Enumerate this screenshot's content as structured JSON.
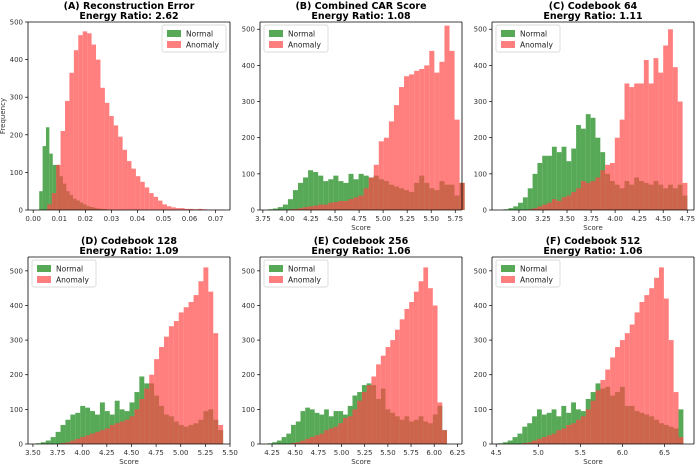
{
  "figure": {
    "xlabel_text": "Score",
    "ylabel_text": "Frequency",
    "legend": [
      "Normal",
      "Anomaly"
    ],
    "colors": {
      "normal": "#3a9a3a",
      "anomaly": "#ff4747",
      "overlap": "#a83f1c",
      "edge": "#000000"
    },
    "background": "#ffffff"
  },
  "chart_data": [
    {
      "type": "histogram",
      "title": "(A) Reconstruction Error",
      "subtitle": "Energy Ratio: 2.62",
      "xlabel": "",
      "ylabel": "Frequency",
      "xlim": [
        -0.002,
        0.0755
      ],
      "ylim": [
        0,
        500
      ],
      "xticks": [
        "0.00",
        "0.01",
        "0.02",
        "0.03",
        "0.04",
        "0.05",
        "0.06",
        "0.07"
      ],
      "xtick_values": [
        0,
        0.01,
        0.02,
        0.03,
        0.04,
        0.05,
        0.06,
        0.07
      ],
      "yticks": [
        0,
        100,
        200,
        300,
        400,
        500
      ],
      "legend_position": "top-right",
      "series": [
        {
          "name": "Normal",
          "bin_start": 0.0023,
          "bin_width": 0.0013,
          "counts": [
            50,
            170,
            220,
            150,
            120,
            120,
            90,
            70,
            50,
            40,
            30,
            25,
            20,
            15,
            10,
            8,
            6,
            4,
            3,
            2
          ]
        },
        {
          "name": "Anomaly",
          "bin_start": 0.0054,
          "bin_width": 0.0017,
          "counts": [
            15,
            45,
            120,
            210,
            290,
            365,
            425,
            465,
            475,
            470,
            440,
            400,
            325,
            285,
            250,
            225,
            195,
            160,
            130,
            110,
            90,
            75,
            60,
            45,
            35,
            25,
            15,
            10,
            7,
            5,
            5,
            3,
            3,
            2,
            3,
            2,
            1,
            1,
            1,
            1
          ]
        }
      ]
    },
    {
      "type": "histogram",
      "title": "(B) Combined CAR Score",
      "subtitle": "Energy Ratio: 1.08",
      "xlabel": "Score",
      "ylabel": "",
      "xlim": [
        3.72,
        5.82
      ],
      "ylim": [
        0,
        520
      ],
      "xticks": [
        "3.75",
        "4.00",
        "4.25",
        "4.50",
        "4.75",
        "5.00",
        "5.25",
        "5.50",
        "5.75"
      ],
      "xtick_values": [
        3.75,
        4.0,
        4.25,
        4.5,
        4.75,
        5.0,
        5.25,
        5.5,
        5.75
      ],
      "yticks": [
        0,
        100,
        200,
        300,
        400,
        500
      ],
      "legend_position": "top-left",
      "series": [
        {
          "name": "Normal",
          "bin_start": 3.8,
          "bin_width": 0.0525,
          "counts": [
            2,
            4,
            8,
            15,
            30,
            55,
            75,
            90,
            110,
            105,
            95,
            80,
            85,
            95,
            80,
            75,
            100,
            85,
            100,
            95,
            90,
            95,
            85,
            80,
            70,
            65,
            60,
            55,
            50,
            75,
            95,
            75,
            60,
            55,
            80,
            70,
            70,
            40,
            75
          ]
        },
        {
          "name": "Anomaly",
          "bin_start": 3.8,
          "bin_width": 0.0525,
          "counts": [
            0,
            0,
            0,
            0,
            2,
            3,
            5,
            8,
            10,
            12,
            15,
            15,
            20,
            22,
            25,
            25,
            30,
            35,
            40,
            60,
            90,
            125,
            190,
            200,
            245,
            290,
            340,
            370,
            375,
            385,
            390,
            400,
            440,
            380,
            410,
            510,
            440,
            250,
            75
          ]
        }
      ]
    },
    {
      "type": "histogram",
      "title": "(C) Codebook 64",
      "subtitle": "Energy Ratio: 1.11",
      "xlabel": "Score",
      "ylabel": "",
      "xlim": [
        2.72,
        4.82
      ],
      "ylim": [
        0,
        520
      ],
      "xticks": [
        "3.00",
        "3.25",
        "3.50",
        "3.75",
        "4.00",
        "4.25",
        "4.50",
        "4.75"
      ],
      "xtick_values": [
        3.0,
        3.25,
        3.5,
        3.75,
        4.0,
        4.25,
        4.5,
        4.75
      ],
      "yticks": [
        0,
        100,
        200,
        300,
        400,
        500
      ],
      "legend_position": "top-left",
      "series": [
        {
          "name": "Normal",
          "bin_start": 2.84,
          "bin_width": 0.0503,
          "counts": [
            2,
            5,
            10,
            20,
            35,
            60,
            100,
            130,
            150,
            150,
            175,
            160,
            175,
            135,
            170,
            235,
            225,
            265,
            255,
            200,
            160,
            100,
            80,
            70,
            60,
            80,
            70,
            90,
            80,
            75,
            70,
            80,
            70,
            60,
            70,
            60,
            70,
            40
          ]
        },
        {
          "name": "Anomaly",
          "bin_start": 2.84,
          "bin_width": 0.0503,
          "counts": [
            0,
            0,
            0,
            0,
            0,
            2,
            5,
            10,
            15,
            20,
            30,
            25,
            35,
            40,
            50,
            60,
            80,
            75,
            80,
            90,
            110,
            125,
            130,
            200,
            250,
            350,
            340,
            350,
            350,
            415,
            350,
            420,
            380,
            455,
            500,
            395,
            300,
            75
          ]
        }
      ]
    },
    {
      "type": "histogram",
      "title": "(D) Codebook 128",
      "subtitle": "Energy Ratio: 1.09",
      "xlabel": "Score",
      "ylabel": "",
      "xlim": [
        3.45,
        5.5
      ],
      "ylim": [
        0,
        540
      ],
      "xticks": [
        "3.50",
        "3.75",
        "4.00",
        "4.25",
        "4.50",
        "4.75",
        "5.00",
        "5.25",
        "5.50"
      ],
      "xtick_values": [
        3.5,
        3.75,
        4.0,
        4.25,
        4.5,
        4.75,
        5.0,
        5.25,
        5.5
      ],
      "yticks": [
        0,
        100,
        200,
        300,
        400,
        500
      ],
      "legend_position": "top-left",
      "series": [
        {
          "name": "Normal",
          "bin_start": 3.53,
          "bin_width": 0.05,
          "counts": [
            2,
            5,
            10,
            20,
            35,
            55,
            70,
            85,
            90,
            110,
            105,
            95,
            85,
            120,
            95,
            85,
            125,
            100,
            95,
            120,
            150,
            195,
            175,
            175,
            140,
            110,
            85,
            80,
            65,
            55,
            50,
            55,
            60,
            70,
            95,
            100,
            70,
            40
          ]
        },
        {
          "name": "Anomaly",
          "bin_start": 3.53,
          "bin_width": 0.05,
          "counts": [
            0,
            0,
            0,
            0,
            0,
            3,
            5,
            10,
            15,
            20,
            25,
            30,
            35,
            40,
            45,
            55,
            60,
            65,
            70,
            80,
            100,
            130,
            160,
            200,
            245,
            280,
            310,
            340,
            355,
            380,
            395,
            410,
            430,
            470,
            510,
            440,
            320,
            55
          ]
        }
      ]
    },
    {
      "type": "histogram",
      "title": "(E) Codebook 256",
      "subtitle": "Energy Ratio: 1.06",
      "xlabel": "Score",
      "ylabel": "",
      "xlim": [
        4.12,
        6.3
      ],
      "ylim": [
        0,
        540
      ],
      "xticks": [
        "4.25",
        "4.50",
        "4.75",
        "5.00",
        "5.25",
        "5.50",
        "5.75",
        "6.00",
        "6.25"
      ],
      "xtick_values": [
        4.25,
        4.5,
        4.75,
        5.0,
        5.25,
        5.5,
        5.75,
        6.0,
        6.25
      ],
      "yticks": [
        0,
        100,
        200,
        300,
        400,
        500
      ],
      "legend_position": "top-left",
      "series": [
        {
          "name": "Normal",
          "bin_start": 4.2,
          "bin_width": 0.051,
          "counts": [
            2,
            5,
            10,
            20,
            30,
            55,
            65,
            95,
            105,
            100,
            90,
            85,
            100,
            80,
            95,
            95,
            85,
            110,
            140,
            150,
            170,
            175,
            170,
            130,
            160,
            100,
            90,
            80,
            70,
            80,
            65,
            70,
            80,
            65,
            60,
            85,
            110,
            40
          ]
        },
        {
          "name": "Anomaly",
          "bin_start": 4.2,
          "bin_width": 0.051,
          "counts": [
            0,
            0,
            0,
            0,
            0,
            3,
            5,
            10,
            15,
            20,
            25,
            30,
            40,
            45,
            50,
            60,
            75,
            80,
            100,
            125,
            150,
            170,
            195,
            230,
            255,
            280,
            300,
            330,
            360,
            390,
            410,
            440,
            470,
            510,
            450,
            400,
            120,
            40
          ]
        }
      ]
    },
    {
      "type": "histogram",
      "title": "(F) Codebook 512",
      "subtitle": "Energy Ratio: 1.06",
      "xlabel": "Score",
      "ylabel": "",
      "xlim": [
        4.45,
        6.85
      ],
      "ylim": [
        0,
        540
      ],
      "xticks": [
        "4.5",
        "5.0",
        "5.5",
        "6.0",
        "6.5"
      ],
      "xtick_values": [
        4.5,
        5.0,
        5.5,
        6.0,
        6.5
      ],
      "yticks": [
        0,
        100,
        200,
        300,
        400,
        500
      ],
      "legend_position": "top-left",
      "series": [
        {
          "name": "Normal",
          "bin_start": 4.52,
          "bin_width": 0.058,
          "counts": [
            2,
            5,
            10,
            20,
            30,
            50,
            60,
            80,
            100,
            85,
            90,
            100,
            80,
            110,
            90,
            120,
            100,
            95,
            130,
            150,
            175,
            160,
            165,
            140,
            150,
            165,
            110,
            110,
            95,
            90,
            85,
            80,
            70,
            60,
            55,
            50,
            45,
            100
          ]
        },
        {
          "name": "Anomaly",
          "bin_start": 4.52,
          "bin_width": 0.058,
          "counts": [
            0,
            0,
            0,
            0,
            0,
            3,
            5,
            10,
            15,
            20,
            25,
            30,
            40,
            45,
            55,
            60,
            70,
            80,
            100,
            125,
            155,
            185,
            215,
            250,
            280,
            300,
            320,
            345,
            380,
            410,
            430,
            450,
            480,
            510,
            420,
            300,
            150,
            20
          ]
        }
      ]
    }
  ]
}
